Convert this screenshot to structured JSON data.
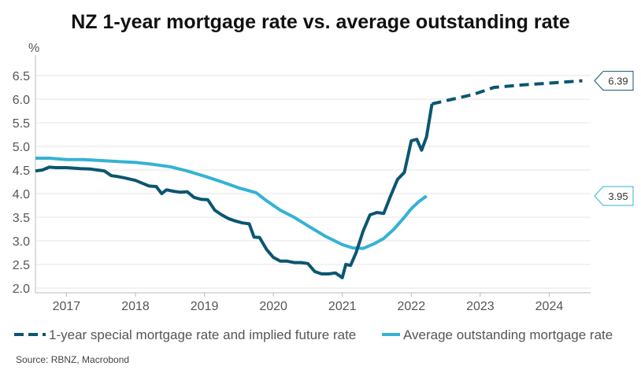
{
  "title": "NZ 1-year mortgage rate vs. average outstanding rate",
  "source": "Source: RBNZ, Macrobond",
  "colors": {
    "dark": "#0b5672",
    "light": "#35b2d4",
    "axis": "#bbbbbb",
    "grid": "#e6e6e6"
  },
  "chart_data": {
    "type": "line",
    "ylabel": "%",
    "ylim": [
      1.9,
      6.8
    ],
    "xlim": [
      2016.55,
      2024.6
    ],
    "yticks": [
      2.0,
      2.5,
      3.0,
      3.5,
      4.0,
      4.5,
      5.0,
      5.5,
      6.0,
      6.5
    ],
    "ytick_labels": [
      "2.0",
      "2.5",
      "3.0",
      "3.5",
      "4.0",
      "4.5",
      "5.0",
      "5.5",
      "6.0",
      "6.5"
    ],
    "xticks": [
      2017,
      2018,
      2019,
      2020,
      2021,
      2022,
      2023,
      2024
    ],
    "xtick_labels": [
      "2017",
      "2018",
      "2019",
      "2020",
      "2021",
      "2022",
      "2023",
      "2024"
    ],
    "grid": "horizontal",
    "legend_position": "bottom",
    "series": [
      {
        "name": "1-year special mortgage rate and implied future rate",
        "color": "#0b5672",
        "style": "solid",
        "x": [
          2016.55,
          2016.65,
          2016.75,
          2016.85,
          2017.0,
          2017.2,
          2017.35,
          2017.45,
          2017.55,
          2017.65,
          2017.75,
          2017.85,
          2018.0,
          2018.1,
          2018.2,
          2018.3,
          2018.38,
          2018.45,
          2018.55,
          2018.65,
          2018.75,
          2018.85,
          2018.95,
          2019.05,
          2019.15,
          2019.25,
          2019.35,
          2019.45,
          2019.55,
          2019.65,
          2019.72,
          2019.8,
          2019.9,
          2020.0,
          2020.1,
          2020.2,
          2020.3,
          2020.4,
          2020.5,
          2020.6,
          2020.7,
          2020.8,
          2020.9,
          2021.0,
          2021.05,
          2021.12,
          2021.2,
          2021.3,
          2021.4,
          2021.5,
          2021.6,
          2021.7,
          2021.8,
          2021.9,
          2022.0,
          2022.08,
          2022.15,
          2022.22,
          2022.3
        ],
        "y": [
          4.48,
          4.5,
          4.56,
          4.55,
          4.55,
          4.53,
          4.52,
          4.5,
          4.48,
          4.38,
          4.36,
          4.33,
          4.28,
          4.22,
          4.16,
          4.15,
          4.0,
          4.08,
          4.05,
          4.03,
          4.04,
          3.92,
          3.88,
          3.87,
          3.65,
          3.55,
          3.47,
          3.42,
          3.38,
          3.36,
          3.08,
          3.07,
          2.82,
          2.65,
          2.57,
          2.57,
          2.54,
          2.54,
          2.52,
          2.35,
          2.3,
          2.3,
          2.32,
          2.22,
          2.5,
          2.48,
          2.75,
          3.2,
          3.55,
          3.6,
          3.58,
          3.95,
          4.3,
          4.45,
          5.12,
          5.15,
          4.92,
          5.2,
          5.9
        ]
      },
      {
        "name": "1-year special mortgage rate and implied future rate",
        "color": "#0b5672",
        "style": "dashed",
        "x": [
          2022.3,
          2022.6,
          2022.9,
          2023.2,
          2023.6,
          2024.0,
          2024.3,
          2024.48
        ],
        "y": [
          5.9,
          6.0,
          6.1,
          6.25,
          6.3,
          6.34,
          6.37,
          6.39
        ]
      },
      {
        "name": "Average outstanding mortgage rate",
        "color": "#35b2d4",
        "style": "solid",
        "x": [
          2016.55,
          2016.75,
          2017.0,
          2017.25,
          2017.5,
          2017.75,
          2018.0,
          2018.25,
          2018.5,
          2018.75,
          2019.0,
          2019.25,
          2019.5,
          2019.75,
          2019.9,
          2020.1,
          2020.3,
          2020.5,
          2020.75,
          2021.0,
          2021.15,
          2021.3,
          2021.45,
          2021.6,
          2021.75,
          2021.9,
          2022.0,
          2022.1,
          2022.22
        ],
        "y": [
          4.75,
          4.75,
          4.72,
          4.72,
          4.7,
          4.68,
          4.66,
          4.62,
          4.57,
          4.48,
          4.37,
          4.25,
          4.12,
          4.02,
          3.85,
          3.65,
          3.5,
          3.32,
          3.1,
          2.92,
          2.85,
          2.84,
          2.93,
          3.05,
          3.25,
          3.5,
          3.68,
          3.82,
          3.95
        ]
      }
    ],
    "annotations": [
      {
        "label": "6.39",
        "value": 6.39,
        "series_color": "#0b5672"
      },
      {
        "label": "3.95",
        "value": 3.95,
        "series_color": "#35b2d4"
      }
    ],
    "legend": [
      {
        "label": "1-year special mortgage rate and implied future rate",
        "style": "dashed",
        "color": "#0b5672"
      },
      {
        "label": "Average outstanding mortgage rate",
        "style": "solid",
        "color": "#35b2d4"
      }
    ]
  }
}
